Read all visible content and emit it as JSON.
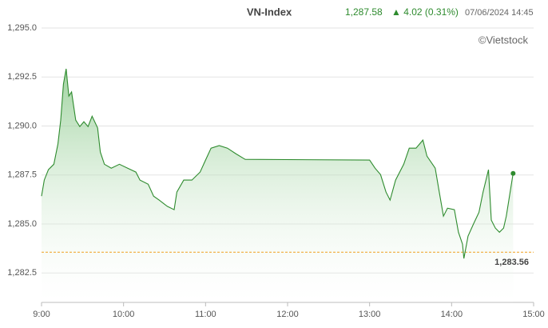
{
  "chart_data": {
    "type": "line",
    "title": "VN-Index",
    "price": "1,287.58",
    "change": "▲ 4.02 (0.31%)",
    "timestamp": "07/06/2024 14:45",
    "source": "©Vietstock",
    "color": "#2e8b2e",
    "x": [
      "9:00",
      "9:02",
      "9:05",
      "9:09",
      "9:12",
      "9:14",
      "9:16",
      "9:18",
      "9:20",
      "9:22",
      "9:25",
      "9:28",
      "9:31",
      "9:34",
      "9:37",
      "9:41",
      "9:43",
      "9:46",
      "9:51",
      "9:57",
      "10:03",
      "10:09",
      "10:12",
      "10:18",
      "10:22",
      "10:26",
      "10:32",
      "10:37",
      "10:39",
      "10:44",
      "10:50",
      "10:56",
      "11:00",
      "11:04",
      "11:10",
      "11:16",
      "11:22",
      "11:28",
      "11:29",
      "13:00",
      "13:04",
      "13:08",
      "13:12",
      "13:15",
      "13:19",
      "13:25",
      "13:29",
      "13:34",
      "13:39",
      "13:42",
      "13:48",
      "13:51",
      "13:54",
      "13:57",
      "14:02",
      "14:05",
      "14:08",
      "14:09",
      "14:12",
      "14:16",
      "14:20",
      "14:23",
      "14:27",
      "14:29",
      "14:32",
      "14:35",
      "14:38",
      "14:40",
      "14:45"
    ],
    "values": [
      1286.42,
      1287.24,
      1287.77,
      1288.05,
      1289.08,
      1290.3,
      1292.14,
      1292.92,
      1291.53,
      1291.74,
      1290.3,
      1289.97,
      1290.22,
      1289.97,
      1290.5,
      1289.9,
      1288.67,
      1288.05,
      1287.85,
      1288.05,
      1287.85,
      1287.65,
      1287.24,
      1287.03,
      1286.42,
      1286.22,
      1285.9,
      1285.73,
      1286.63,
      1287.24,
      1287.24,
      1287.65,
      1288.26,
      1288.87,
      1289.0,
      1288.87,
      1288.59,
      1288.34,
      1288.3,
      1288.26,
      1287.85,
      1287.52,
      1286.63,
      1286.22,
      1287.24,
      1288.05,
      1288.87,
      1288.87,
      1289.28,
      1288.46,
      1287.85,
      1286.63,
      1285.4,
      1285.81,
      1285.73,
      1284.58,
      1283.97,
      1283.24,
      1284.38,
      1285.0,
      1285.6,
      1286.63,
      1287.77,
      1285.2,
      1284.79,
      1284.58,
      1284.79,
      1285.4,
      1287.58
    ],
    "reference": {
      "value": 1283.56,
      "label": "1,283.56"
    },
    "xlim": [
      "9:00",
      "15:00"
    ],
    "xticks": [
      "9:00",
      "10:00",
      "11:00",
      "12:00",
      "13:00",
      "14:00",
      "15:00"
    ],
    "ylim": [
      1281,
      1295
    ],
    "yticks": [
      {
        "value": 1282.5,
        "label": "1,282.5"
      },
      {
        "value": 1285,
        "label": "1,285.0"
      },
      {
        "value": 1287.5,
        "label": "1,287.5"
      },
      {
        "value": 1290,
        "label": "1,290.0"
      },
      {
        "value": 1292.5,
        "label": "1,292.5"
      },
      {
        "value": 1295,
        "label": "1,295.0"
      }
    ],
    "grid": true
  }
}
